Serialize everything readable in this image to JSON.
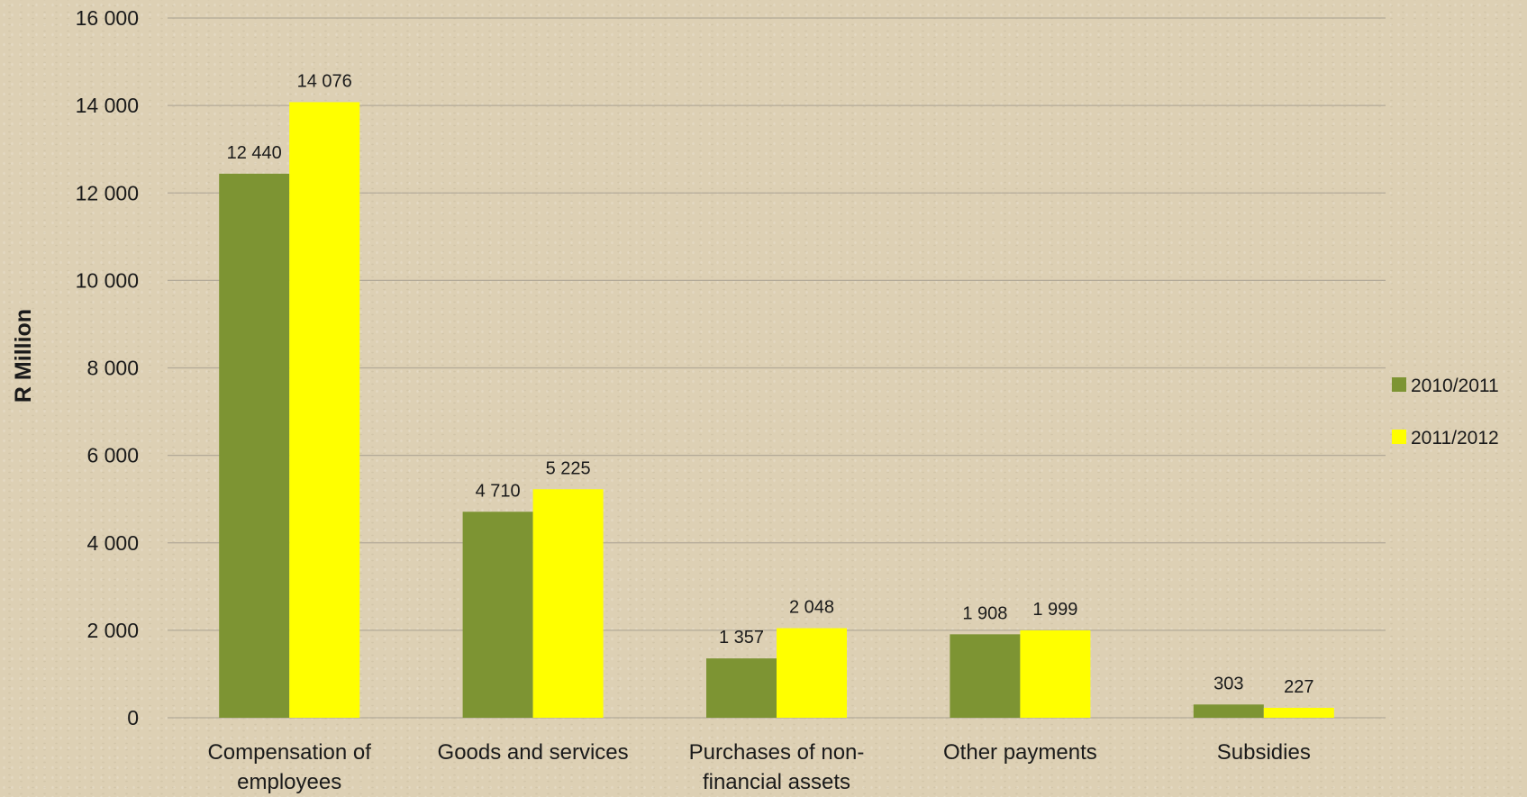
{
  "chart_data": {
    "type": "bar",
    "title": "",
    "xlabel": "",
    "ylabel": "R Million",
    "ylim": [
      0,
      16000
    ],
    "yticks": [
      0,
      2000,
      4000,
      6000,
      8000,
      10000,
      12000,
      14000,
      16000
    ],
    "ytick_labels": [
      "0",
      "2 000",
      "4 000",
      "6 000",
      "8 000",
      "10 000",
      "12 000",
      "14 000",
      "16 000"
    ],
    "categories": [
      [
        "Compensation of",
        "employees"
      ],
      [
        "Goods and services"
      ],
      [
        "Purchases of non-",
        "financial assets"
      ],
      [
        "Other payments"
      ],
      [
        "Subsidies"
      ]
    ],
    "series": [
      {
        "name": "2010/2011",
        "color": "#7d9433",
        "values": [
          12440,
          4710,
          1357,
          1908,
          303
        ],
        "labels": [
          "12 440",
          "4 710",
          "1 357",
          "1 908",
          "303"
        ]
      },
      {
        "name": "2011/2012",
        "color": "#ffff00",
        "values": [
          14076,
          5225,
          2048,
          1999,
          227
        ],
        "labels": [
          "14 076",
          "5 225",
          "2 048",
          "1 999",
          "227"
        ]
      }
    ],
    "grid": true,
    "gridline_color": "#b3aa98",
    "legend_position": "right"
  }
}
